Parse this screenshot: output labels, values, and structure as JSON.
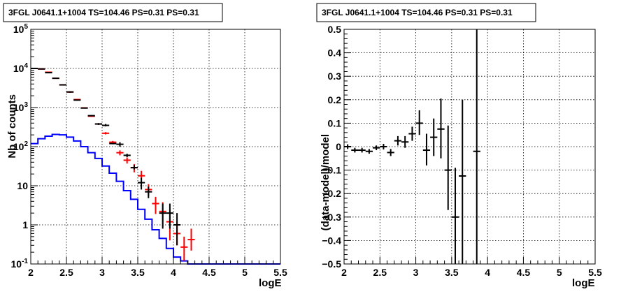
{
  "chart_data": [
    {
      "type": "line",
      "title": "3FGL J0641.1+1004 TS=104.46 PS=0.31 PS=0.31",
      "xlabel": "logE",
      "ylabel": "Nb of counts",
      "xlim": [
        2,
        5.5
      ],
      "ylim": [
        0.1,
        100000
      ],
      "yscale": "log",
      "grid": true,
      "x_ticks": [
        "2",
        "2.5",
        "3",
        "3.5",
        "4",
        "4.5",
        "5",
        "5.5"
      ],
      "y_ticks": [
        {
          "value": 0.1,
          "mant": "10",
          "exp": "-1"
        },
        {
          "value": 1,
          "mant": "1",
          "exp": ""
        },
        {
          "value": 10,
          "mant": "10",
          "exp": ""
        },
        {
          "value": 100,
          "mant": "10",
          "exp": "2"
        },
        {
          "value": 1000,
          "mant": "10",
          "exp": "3"
        },
        {
          "value": 10000,
          "mant": "10",
          "exp": "4"
        },
        {
          "value": 100000,
          "mant": "10",
          "exp": "5"
        }
      ],
      "series": [
        {
          "style": "step",
          "color": "#0000ff",
          "bin_edges": [
            2.0,
            2.1,
            2.2,
            2.3,
            2.4,
            2.5,
            2.6,
            2.7,
            2.8,
            2.9,
            3.0,
            3.1,
            3.2,
            3.3,
            3.4,
            3.5,
            3.6,
            3.7,
            3.8,
            3.9,
            4.0,
            4.1,
            4.2,
            4.3,
            5.5
          ],
          "values": [
            120,
            160,
            185,
            205,
            200,
            175,
            140,
            100,
            70,
            50,
            32,
            21,
            13,
            7.5,
            4.5,
            2.5,
            1.4,
            0.75,
            0.45,
            0.25,
            0.15,
            0.12,
            0.1,
            0.1
          ]
        },
        {
          "style": "errorbar",
          "color": "#ff0000",
          "half_width": 0.05,
          "x": [
            2.05,
            2.15,
            2.25,
            2.35,
            2.45,
            2.55,
            2.65,
            2.75,
            2.85,
            2.95,
            3.05,
            3.15,
            3.25,
            3.35,
            3.45,
            3.55,
            3.65,
            3.75,
            3.85,
            3.95,
            4.05,
            4.15,
            4.25
          ],
          "y": [
            10000,
            9700,
            8000,
            5600,
            3800,
            2500,
            1600,
            980,
            600,
            380,
            220,
            130,
            70,
            45,
            29,
            18,
            8,
            3.5,
            2.2,
            1.2,
            0.6,
            0.27,
            0.42
          ],
          "yerr": [
            [
              9900,
              9600,
              7900,
              5500,
              3700,
              2400,
              1550,
              950,
              580,
              360,
              205,
              120,
              60,
              37,
              22,
              12,
              5.5,
              1.9,
              0.9,
              0.4,
              0.3,
              0.12,
              0.22
            ],
            [
              10100,
              9800,
              8100,
              5700,
              3900,
              2600,
              1650,
              1010,
              620,
              400,
              235,
              140,
              80,
              53,
              36,
              24,
              11,
              5.2,
              3.8,
              2.4,
              1.2,
              0.5,
              0.8
            ]
          ]
        },
        {
          "style": "errorbar",
          "color": "#000000",
          "half_width": 0.05,
          "x": [
            2.05,
            2.15,
            2.25,
            2.35,
            2.45,
            2.55,
            2.65,
            2.75,
            2.85,
            2.95,
            3.05,
            3.15,
            3.25,
            3.35,
            3.45,
            3.55,
            3.65,
            3.85,
            3.95,
            4.05
          ],
          "y": [
            10000,
            9700,
            7800,
            5600,
            3800,
            2500,
            1550,
            970,
            620,
            380,
            350,
            120,
            115,
            60,
            29,
            12,
            7,
            2,
            2,
            1
          ],
          "yerr": [
            [
              9900,
              9600,
              7600,
              5500,
              3700,
              2400,
              1500,
              940,
              600,
              360,
              330,
              115,
              100,
              54,
              26,
              8,
              4.8,
              0.8,
              0.8,
              0.3
            ],
            [
              10100,
              9800,
              8000,
              5700,
              3900,
              2600,
              1600,
              1000,
              640,
              400,
              380,
              125,
              130,
              66,
              34,
              16,
              9.5,
              3.5,
              3.5,
              2
            ]
          ]
        }
      ]
    },
    {
      "type": "scatter",
      "title": "3FGL J0641.1+1004 TS=104.46 PS=0.31 PS=0.31",
      "xlabel": "logE",
      "ylabel": "(data-model)/model",
      "xlim": [
        2,
        5.5
      ],
      "ylim": [
        -0.5,
        0.5
      ],
      "grid": true,
      "x_ticks": [
        "2",
        "2.5",
        "3",
        "3.5",
        "4",
        "4.5",
        "5",
        "5.5"
      ],
      "y_ticks": [
        {
          "value": -0.5,
          "label": "−0.5"
        },
        {
          "value": -0.4,
          "label": "−0.4"
        },
        {
          "value": -0.3,
          "label": "−0.3"
        },
        {
          "value": -0.2,
          "label": "−0.2"
        },
        {
          "value": -0.1,
          "label": "−0.1"
        },
        {
          "value": 0,
          "label": "0"
        },
        {
          "value": 0.1,
          "label": "0.1"
        },
        {
          "value": 0.2,
          "label": "0.2"
        },
        {
          "value": 0.3,
          "label": "0.3"
        },
        {
          "value": 0.4,
          "label": "0.4"
        },
        {
          "value": 0.5,
          "label": "0.5"
        }
      ],
      "series": [
        {
          "style": "errorbar",
          "color": "#000000",
          "half_width": 0.05,
          "x": [
            2.05,
            2.15,
            2.25,
            2.35,
            2.45,
            2.55,
            2.65,
            2.75,
            2.85,
            2.95,
            3.05,
            3.15,
            3.25,
            3.35,
            3.45,
            3.55,
            3.65,
            3.85
          ],
          "y": [
            0.0,
            -0.015,
            -0.015,
            -0.02,
            -0.005,
            0.0,
            -0.025,
            0.025,
            0.02,
            0.055,
            0.1,
            -0.015,
            0.04,
            0.075,
            -0.1,
            -0.3,
            -0.125,
            -0.02
          ],
          "yerr": [
            [
              -0.01,
              -0.025,
              -0.025,
              -0.03,
              -0.015,
              -0.012,
              -0.04,
              0.005,
              -0.005,
              0.025,
              0.05,
              -0.08,
              -0.04,
              -0.05,
              -0.27,
              -0.5,
              -0.5,
              -0.5
            ],
            [
              0.01,
              -0.005,
              -0.005,
              -0.01,
              0.005,
              0.012,
              -0.01,
              0.045,
              0.045,
              0.085,
              0.155,
              0.055,
              0.12,
              0.205,
              0.09,
              -0.09,
              0.2,
              0.5
            ]
          ]
        }
      ]
    }
  ]
}
